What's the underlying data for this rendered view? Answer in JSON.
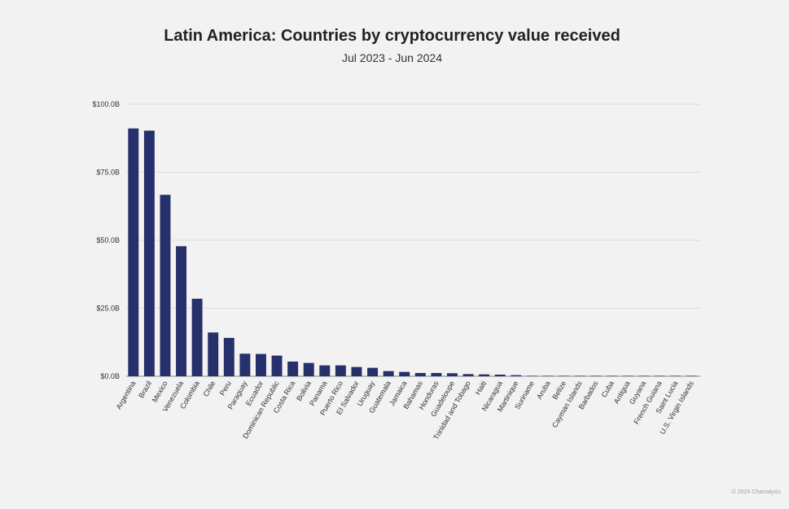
{
  "chart_data": {
    "type": "bar",
    "title": "Latin America: Countries by cryptocurrency value received",
    "subtitle": "Jul 2023 - Jun 2024",
    "xlabel": "",
    "ylabel": "",
    "ylim": [
      0,
      100
    ],
    "y_ticks": [
      0,
      25,
      50,
      75,
      100
    ],
    "y_tick_labels": [
      "$0.0B",
      "$25.0B",
      "$50.0B",
      "$75.0B",
      "$100.0B"
    ],
    "grid": true,
    "bar_color": "#26306b",
    "categories": [
      "Argentina",
      "Brazil",
      "Mexico",
      "Venezuela",
      "Colombia",
      "Chile",
      "Peru",
      "Paraguay",
      "Ecuador",
      "Dominican Republic",
      "Costa Rica",
      "Bolivia",
      "Panama",
      "Puerto Rico",
      "El Salvador",
      "Uruguay",
      "Guatemala",
      "Jamaica",
      "Bahamas",
      "Honduras",
      "Guadeloupe",
      "Trinidad and Tobago",
      "Haiti",
      "Nicaragua",
      "Martinique",
      "Suriname",
      "Aruba",
      "Belize",
      "Cayman Islands",
      "Barbados",
      "Cuba",
      "Antigua",
      "Guyana",
      "French Guiana",
      "Saint Lucia",
      "U.S. Virgin Islands"
    ],
    "values": [
      91.1,
      90.3,
      66.7,
      47.8,
      28.5,
      16.1,
      14.1,
      8.3,
      8.2,
      7.6,
      5.4,
      4.9,
      4.0,
      4.0,
      3.4,
      3.1,
      1.9,
      1.6,
      1.2,
      1.2,
      1.1,
      0.8,
      0.7,
      0.6,
      0.4,
      0.1,
      0.1,
      0.1,
      0.1,
      0.1,
      0.1,
      0.1,
      0.1,
      0.1,
      0.1,
      0.1
    ]
  },
  "credit": "© 2024 Chainalysis"
}
